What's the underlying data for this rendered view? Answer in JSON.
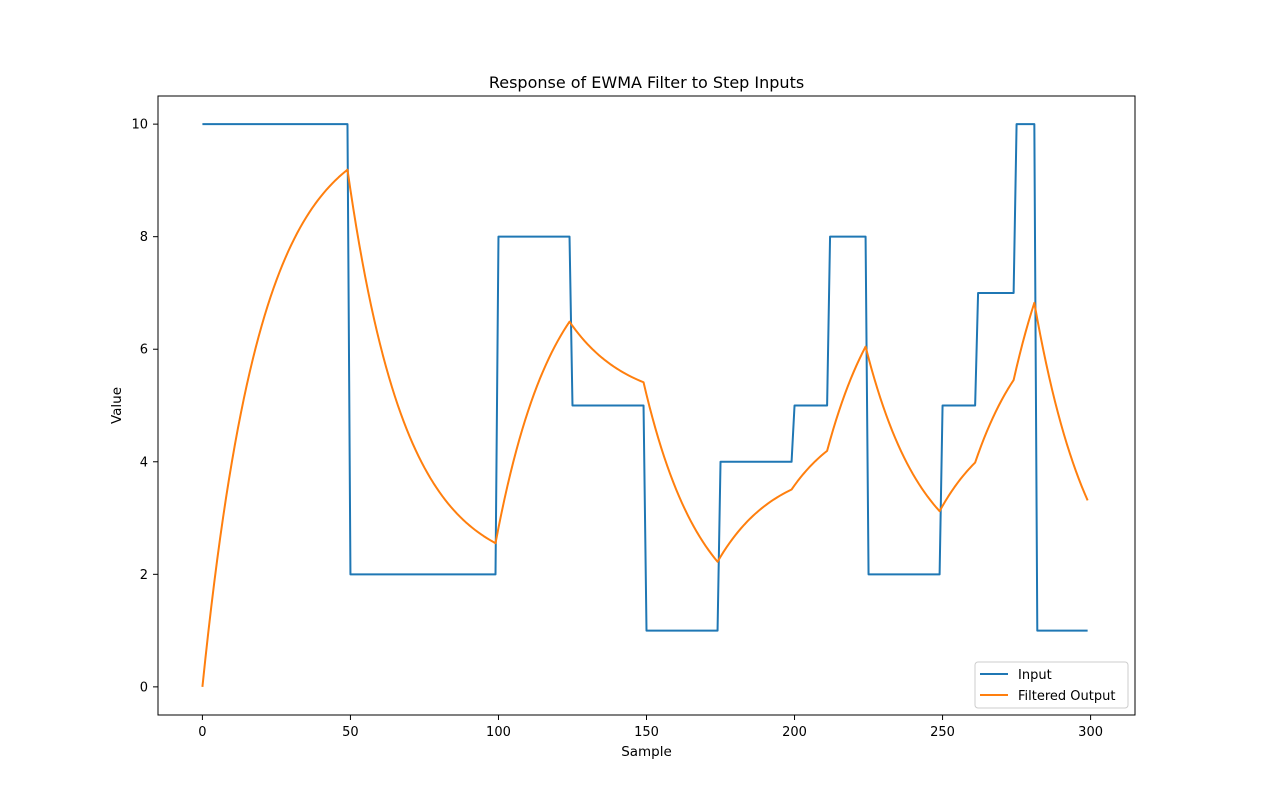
{
  "chart_data": {
    "type": "line",
    "title": "Response of EWMA Filter to Step Inputs",
    "xlabel": "Sample",
    "ylabel": "Value",
    "xlim": [
      -15,
      315
    ],
    "ylim": [
      -0.5,
      10.5
    ],
    "xticks": [
      0,
      50,
      100,
      150,
      200,
      250,
      300
    ],
    "yticks": [
      0,
      2,
      4,
      6,
      8,
      10
    ],
    "grid": false,
    "legend_position": "lower-right",
    "alpha": 0.05,
    "segments": [
      {
        "start": 0,
        "end": 49,
        "value": 10
      },
      {
        "start": 50,
        "end": 99,
        "value": 2
      },
      {
        "start": 100,
        "end": 124,
        "value": 8
      },
      {
        "start": 125,
        "end": 149,
        "value": 5
      },
      {
        "start": 150,
        "end": 174,
        "value": 1
      },
      {
        "start": 175,
        "end": 199,
        "value": 4
      },
      {
        "start": 200,
        "end": 211,
        "value": 5
      },
      {
        "start": 212,
        "end": 224,
        "value": 8
      },
      {
        "start": 225,
        "end": 249,
        "value": 2
      },
      {
        "start": 250,
        "end": 261,
        "value": 5
      },
      {
        "start": 262,
        "end": 274,
        "value": 7
      },
      {
        "start": 275,
        "end": 281,
        "value": 10
      },
      {
        "start": 282,
        "end": 299,
        "value": 1
      }
    ],
    "series": [
      {
        "name": "Input",
        "color": "#1f77b4"
      },
      {
        "name": "Filtered Output",
        "color": "#ff7f0e"
      }
    ]
  }
}
